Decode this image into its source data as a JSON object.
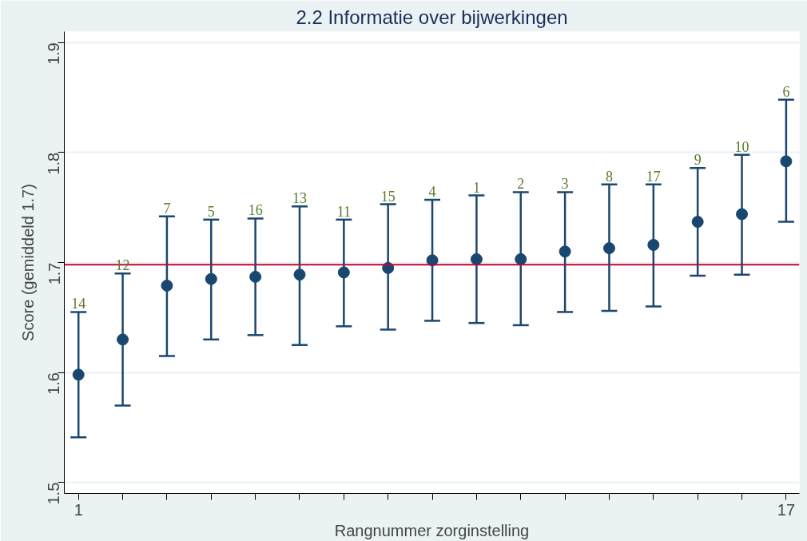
{
  "chart_data": {
    "type": "scatter",
    "title": "2.2 Informatie over bijwerkingen",
    "xlabel": "Rangnummer zorginstelling",
    "ylabel": "Score (gemiddeld 1.7)",
    "x": [
      1,
      2,
      3,
      4,
      5,
      6,
      7,
      8,
      9,
      10,
      11,
      12,
      13,
      14,
      15,
      16,
      17
    ],
    "series": [
      {
        "color": "#1a476f",
        "values": [
          1.598,
          1.63,
          1.679,
          1.685,
          1.687,
          1.689,
          1.691,
          1.695,
          1.702,
          1.703,
          1.703,
          1.71,
          1.713,
          1.716,
          1.737,
          1.744,
          1.792
        ],
        "errors": [
          [
            1.541,
            1.655
          ],
          [
            1.57,
            1.69
          ],
          [
            1.615,
            1.742
          ],
          [
            1.63,
            1.739
          ],
          [
            1.634,
            1.74
          ],
          [
            1.625,
            1.751
          ],
          [
            1.642,
            1.739
          ],
          [
            1.639,
            1.753
          ],
          [
            1.647,
            1.757
          ],
          [
            1.645,
            1.761
          ],
          [
            1.643,
            1.764
          ],
          [
            1.655,
            1.764
          ],
          [
            1.656,
            1.771
          ],
          [
            1.66,
            1.771
          ],
          [
            1.688,
            1.786
          ],
          [
            1.689,
            1.798
          ],
          [
            1.737,
            1.848
          ]
        ]
      }
    ],
    "annotations": [
      {
        "text": "14",
        "x": 1,
        "y": 1.655
      },
      {
        "text": "12",
        "x": 2,
        "y": 1.69
      },
      {
        "text": "7",
        "x": 3,
        "y": 1.742
      },
      {
        "text": "5",
        "x": 4,
        "y": 1.739
      },
      {
        "text": "16",
        "x": 5,
        "y": 1.74
      },
      {
        "text": "13",
        "x": 6,
        "y": 1.751
      },
      {
        "text": "11",
        "x": 7,
        "y": 1.739
      },
      {
        "text": "15",
        "x": 8,
        "y": 1.753
      },
      {
        "text": "4",
        "x": 9,
        "y": 1.757
      },
      {
        "text": "1",
        "x": 10,
        "y": 1.761
      },
      {
        "text": "2",
        "x": 11,
        "y": 1.764
      },
      {
        "text": "3",
        "x": 12,
        "y": 1.764
      },
      {
        "text": "8",
        "x": 13,
        "y": 1.771
      },
      {
        "text": "17",
        "x": 14,
        "y": 1.771
      },
      {
        "text": "9",
        "x": 15,
        "y": 1.786
      },
      {
        "text": "10",
        "x": 16,
        "y": 1.798
      },
      {
        "text": "6",
        "x": 17,
        "y": 1.848
      }
    ],
    "ref_lines": [
      {
        "axis": "y",
        "value": 1.698,
        "color": "#c10534"
      }
    ],
    "xlim": [
      0.68,
      17.3
    ],
    "ylim": [
      1.49,
      1.91
    ],
    "xticks": [
      1,
      {
        "value": 2,
        "label": null
      },
      {
        "value": 3,
        "label": null
      },
      {
        "value": 4,
        "label": null
      },
      {
        "value": 5,
        "label": null
      },
      {
        "value": 6,
        "label": null
      },
      {
        "value": 7,
        "label": null
      },
      {
        "value": 8,
        "label": null
      },
      {
        "value": 9,
        "label": null
      },
      {
        "value": 10,
        "label": null
      },
      {
        "value": 11,
        "label": null
      },
      {
        "value": 12,
        "label": null
      },
      {
        "value": 13,
        "label": null
      },
      {
        "value": 14,
        "label": null
      },
      {
        "value": 15,
        "label": null
      },
      {
        "value": 16,
        "label": null
      },
      17
    ],
    "yticks": [
      1.5,
      1.6,
      1.7,
      1.8,
      1.9
    ],
    "grid": "y",
    "marker": "circle"
  }
}
